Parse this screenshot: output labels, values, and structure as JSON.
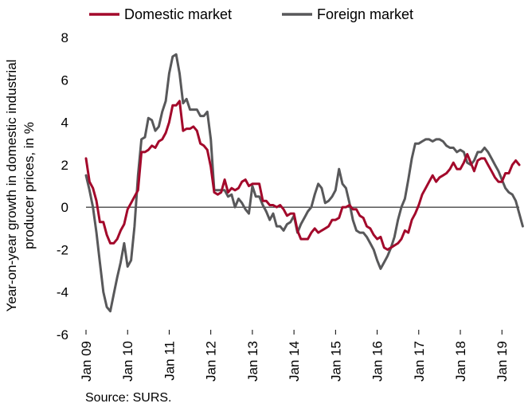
{
  "chart_data": {
    "type": "line",
    "legend": {
      "placement": "top"
    },
    "ylabel_lines": [
      "Year-on-year growth in domestic industrial",
      "producer prices, in %"
    ],
    "ylim": [
      -6,
      8
    ],
    "yticks": [
      -6,
      -4,
      -2,
      0,
      2,
      4,
      6,
      8
    ],
    "x_tick_labels": [
      "Jan 09",
      "Jan 10",
      "Jan 11",
      "Jan 12",
      "Jan 13",
      "Jan 14",
      "Jan 15",
      "Jan 16",
      "Jan 17",
      "Jan 18",
      "Jan 19"
    ],
    "x_start": "Jan 09",
    "x_frequency": "monthly",
    "grid": false,
    "series": [
      {
        "name": "Domestic market",
        "color": "#a3092b",
        "values": [
          2.3,
          1.2,
          0.9,
          0.3,
          -0.7,
          -0.7,
          -1.3,
          -1.7,
          -1.7,
          -1.5,
          -1.1,
          -0.8,
          -0.1,
          0.2,
          0.5,
          0.8,
          2.6,
          2.6,
          2.7,
          2.9,
          2.8,
          3.1,
          3.2,
          3.5,
          4.0,
          4.8,
          4.8,
          5.0,
          3.6,
          3.7,
          3.7,
          3.8,
          3.6,
          3.0,
          2.9,
          2.7,
          1.9,
          0.7,
          0.6,
          0.7,
          1.3,
          0.7,
          0.9,
          0.8,
          0.9,
          1.2,
          1.3,
          1.0,
          1.1,
          1.1,
          1.1,
          0.3,
          0.3,
          0.1,
          0.1,
          0.0,
          0.1,
          -0.1,
          -0.4,
          -0.3,
          -0.3,
          -1.1,
          -1.5,
          -1.5,
          -1.5,
          -1.2,
          -1.0,
          -1.2,
          -1.1,
          -1.0,
          -0.9,
          -0.6,
          -0.6,
          -0.5,
          0.0,
          0.0,
          0.1,
          -0.1,
          -0.1,
          -0.4,
          -0.5,
          -0.9,
          -1.0,
          -1.3,
          -1.5,
          -1.4,
          -1.9,
          -2.0,
          -1.9,
          -1.8,
          -1.7,
          -1.5,
          -1.1,
          -1.2,
          -0.6,
          -0.3,
          0.1,
          0.6,
          0.9,
          1.2,
          1.5,
          1.2,
          1.4,
          1.5,
          1.6,
          1.8,
          2.1,
          1.8,
          1.8,
          2.1,
          2.5,
          2.1,
          1.7,
          2.2,
          2.3,
          2.3,
          2.0,
          1.7,
          1.4,
          1.2,
          1.2,
          1.6,
          1.6,
          2.0,
          2.2,
          2.0
        ]
      },
      {
        "name": "Foreign market",
        "color": "#58585a",
        "values": [
          1.5,
          0.8,
          0.0,
          -1.2,
          -2.6,
          -4.0,
          -4.7,
          -4.9,
          -4.1,
          -3.3,
          -2.6,
          -1.7,
          -2.8,
          -2.5,
          -0.9,
          1.5,
          3.2,
          3.3,
          4.2,
          4.1,
          3.6,
          3.8,
          4.5,
          5.0,
          6.3,
          7.1,
          7.2,
          6.3,
          4.9,
          5.1,
          4.6,
          4.6,
          4.6,
          4.3,
          4.3,
          4.5,
          3.2,
          0.8,
          0.8,
          0.8,
          0.8,
          0.5,
          0.6,
          0.0,
          0.4,
          0.2,
          -0.1,
          -0.3,
          1.0,
          0.5,
          0.5,
          0.1,
          -0.2,
          -0.6,
          -0.3,
          -0.9,
          -0.9,
          -1.1,
          -0.8,
          -0.7,
          -0.4,
          -1.2,
          -0.8,
          -0.5,
          -0.2,
          0.0,
          0.6,
          1.1,
          0.9,
          0.2,
          0.3,
          0.5,
          0.8,
          1.8,
          1.1,
          0.9,
          0.2,
          -0.6,
          -1.1,
          -1.2,
          -1.2,
          -1.4,
          -1.7,
          -2.0,
          -2.5,
          -2.9,
          -2.6,
          -2.3,
          -1.9,
          -1.4,
          -0.6,
          0.0,
          0.4,
          1.3,
          2.3,
          3.0,
          3.0,
          3.1,
          3.2,
          3.2,
          3.1,
          3.2,
          3.2,
          3.1,
          2.9,
          2.8,
          2.8,
          2.6,
          2.7,
          2.6,
          2.1,
          2.0,
          2.2,
          2.6,
          2.6,
          2.8,
          2.6,
          2.3,
          2.0,
          1.7,
          1.3,
          0.9,
          0.7,
          0.6,
          0.3,
          -0.3,
          -0.9
        ]
      }
    ]
  },
  "source_note": "Source: SURS."
}
